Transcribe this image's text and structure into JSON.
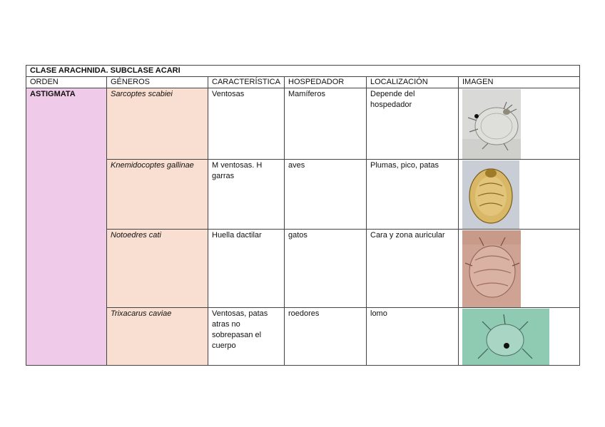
{
  "table": {
    "title": "CLASE ARACHNIDA. SUBCLASE ACARI",
    "headers": [
      "ORDEN",
      "GÉNEROS",
      "CARACTERÍSTICA",
      "HOSPEDADOR",
      "LOCALIZACIÓN",
      "IMAGEN"
    ],
    "orden": "ASTIGMATA",
    "rows": [
      {
        "genero": "Sarcoptes scabiei",
        "caracteristica": "Ventosas",
        "hospedador": "Mamíferos",
        "localizacion": "Depende del hospedador",
        "image_desc": "grey microscope mite"
      },
      {
        "genero": "Knemidocoptes gallinae",
        "caracteristica": "M ventosas. H garras",
        "hospedador": "aves",
        "localizacion": "Plumas, pico, patas",
        "image_desc": "golden oval mite"
      },
      {
        "genero": "Notoedres cati",
        "caracteristica": "Huella dactilar",
        "hospedador": "gatos",
        "localizacion": "Cara y zona auricular",
        "image_desc": "reddish round mite"
      },
      {
        "genero": "Trixacarus caviae",
        "caracteristica": "Ventosas, patas atras no sobrepasan el cuerpo",
        "hospedador": "roedores",
        "localizacion": "lomo",
        "image_desc": "green background mite"
      }
    ]
  },
  "colors": {
    "orden_bg": "#efcbe9",
    "genero_bg": "#f9dfd1",
    "border": "#444444"
  }
}
